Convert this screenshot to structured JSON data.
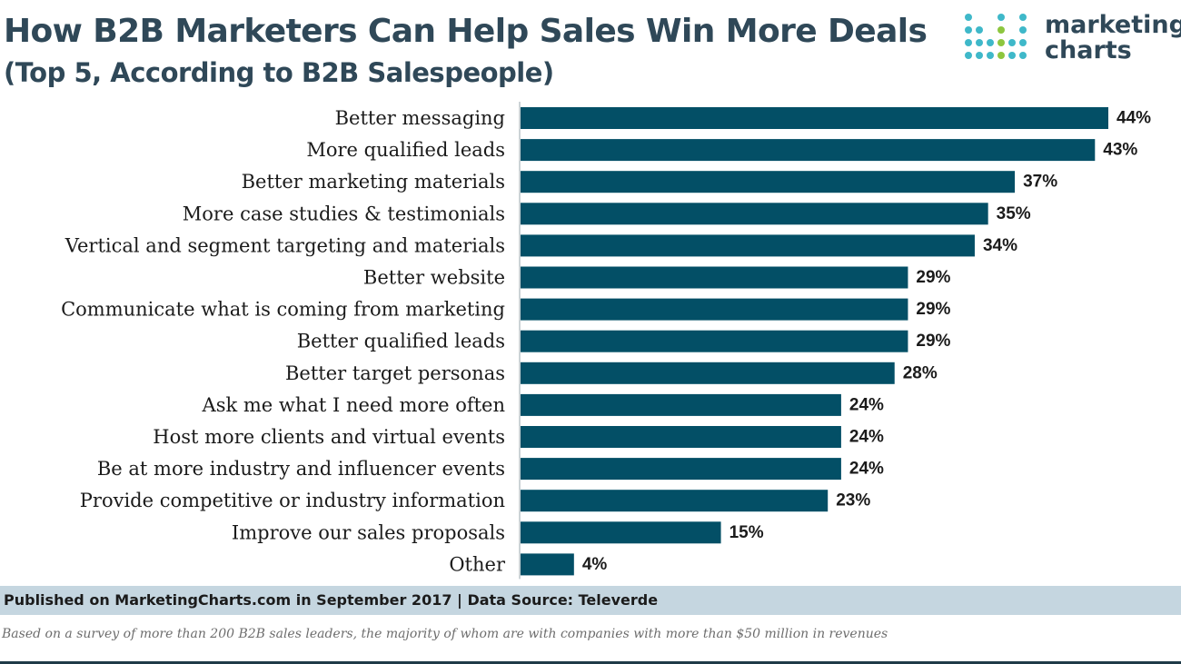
{
  "header": {
    "title": "How B2B Marketers Can Help Sales Win More Deals",
    "subtitle": "(Top 5, According to B2B Salespeople)"
  },
  "logo": {
    "line1": "marketing",
    "line2": "charts",
    "colors": {
      "teal": "#3fb8c9",
      "green": "#8dc63f",
      "navy": "#2f4858"
    }
  },
  "colors": {
    "bar": "#034f66",
    "text": "#1b1b1b",
    "title": "#2f4858"
  },
  "chart_data": {
    "type": "bar",
    "orientation": "horizontal",
    "title": "How B2B Marketers Can Help Sales Win More Deals",
    "subtitle": "(Top 5, According to B2B Salespeople)",
    "xlabel": "",
    "ylabel": "",
    "value_suffix": "%",
    "xlim": [
      0,
      44
    ],
    "grid": false,
    "categories": [
      "Better messaging",
      "More qualified leads",
      "Better marketing materials",
      "More case studies & testimonials",
      "Vertical and segment targeting and materials",
      "Better website",
      "Communicate what is coming from marketing",
      "Better qualified leads",
      "Better target personas",
      "Ask me what I need more often",
      "Host more clients and virtual events",
      "Be at more industry and influencer events",
      "Provide competitive or industry information",
      "Improve our sales proposals",
      "Other"
    ],
    "values": [
      44,
      43,
      37,
      35,
      34,
      29,
      29,
      29,
      28,
      24,
      24,
      24,
      23,
      15,
      4
    ]
  },
  "footer": {
    "published": "Published on MarketingCharts.com in September 2017 | Data Source: Televerde",
    "note": "Based on a survey of more than 200 B2B sales leaders, the majority of whom are with companies with more than $50 million in revenues"
  }
}
